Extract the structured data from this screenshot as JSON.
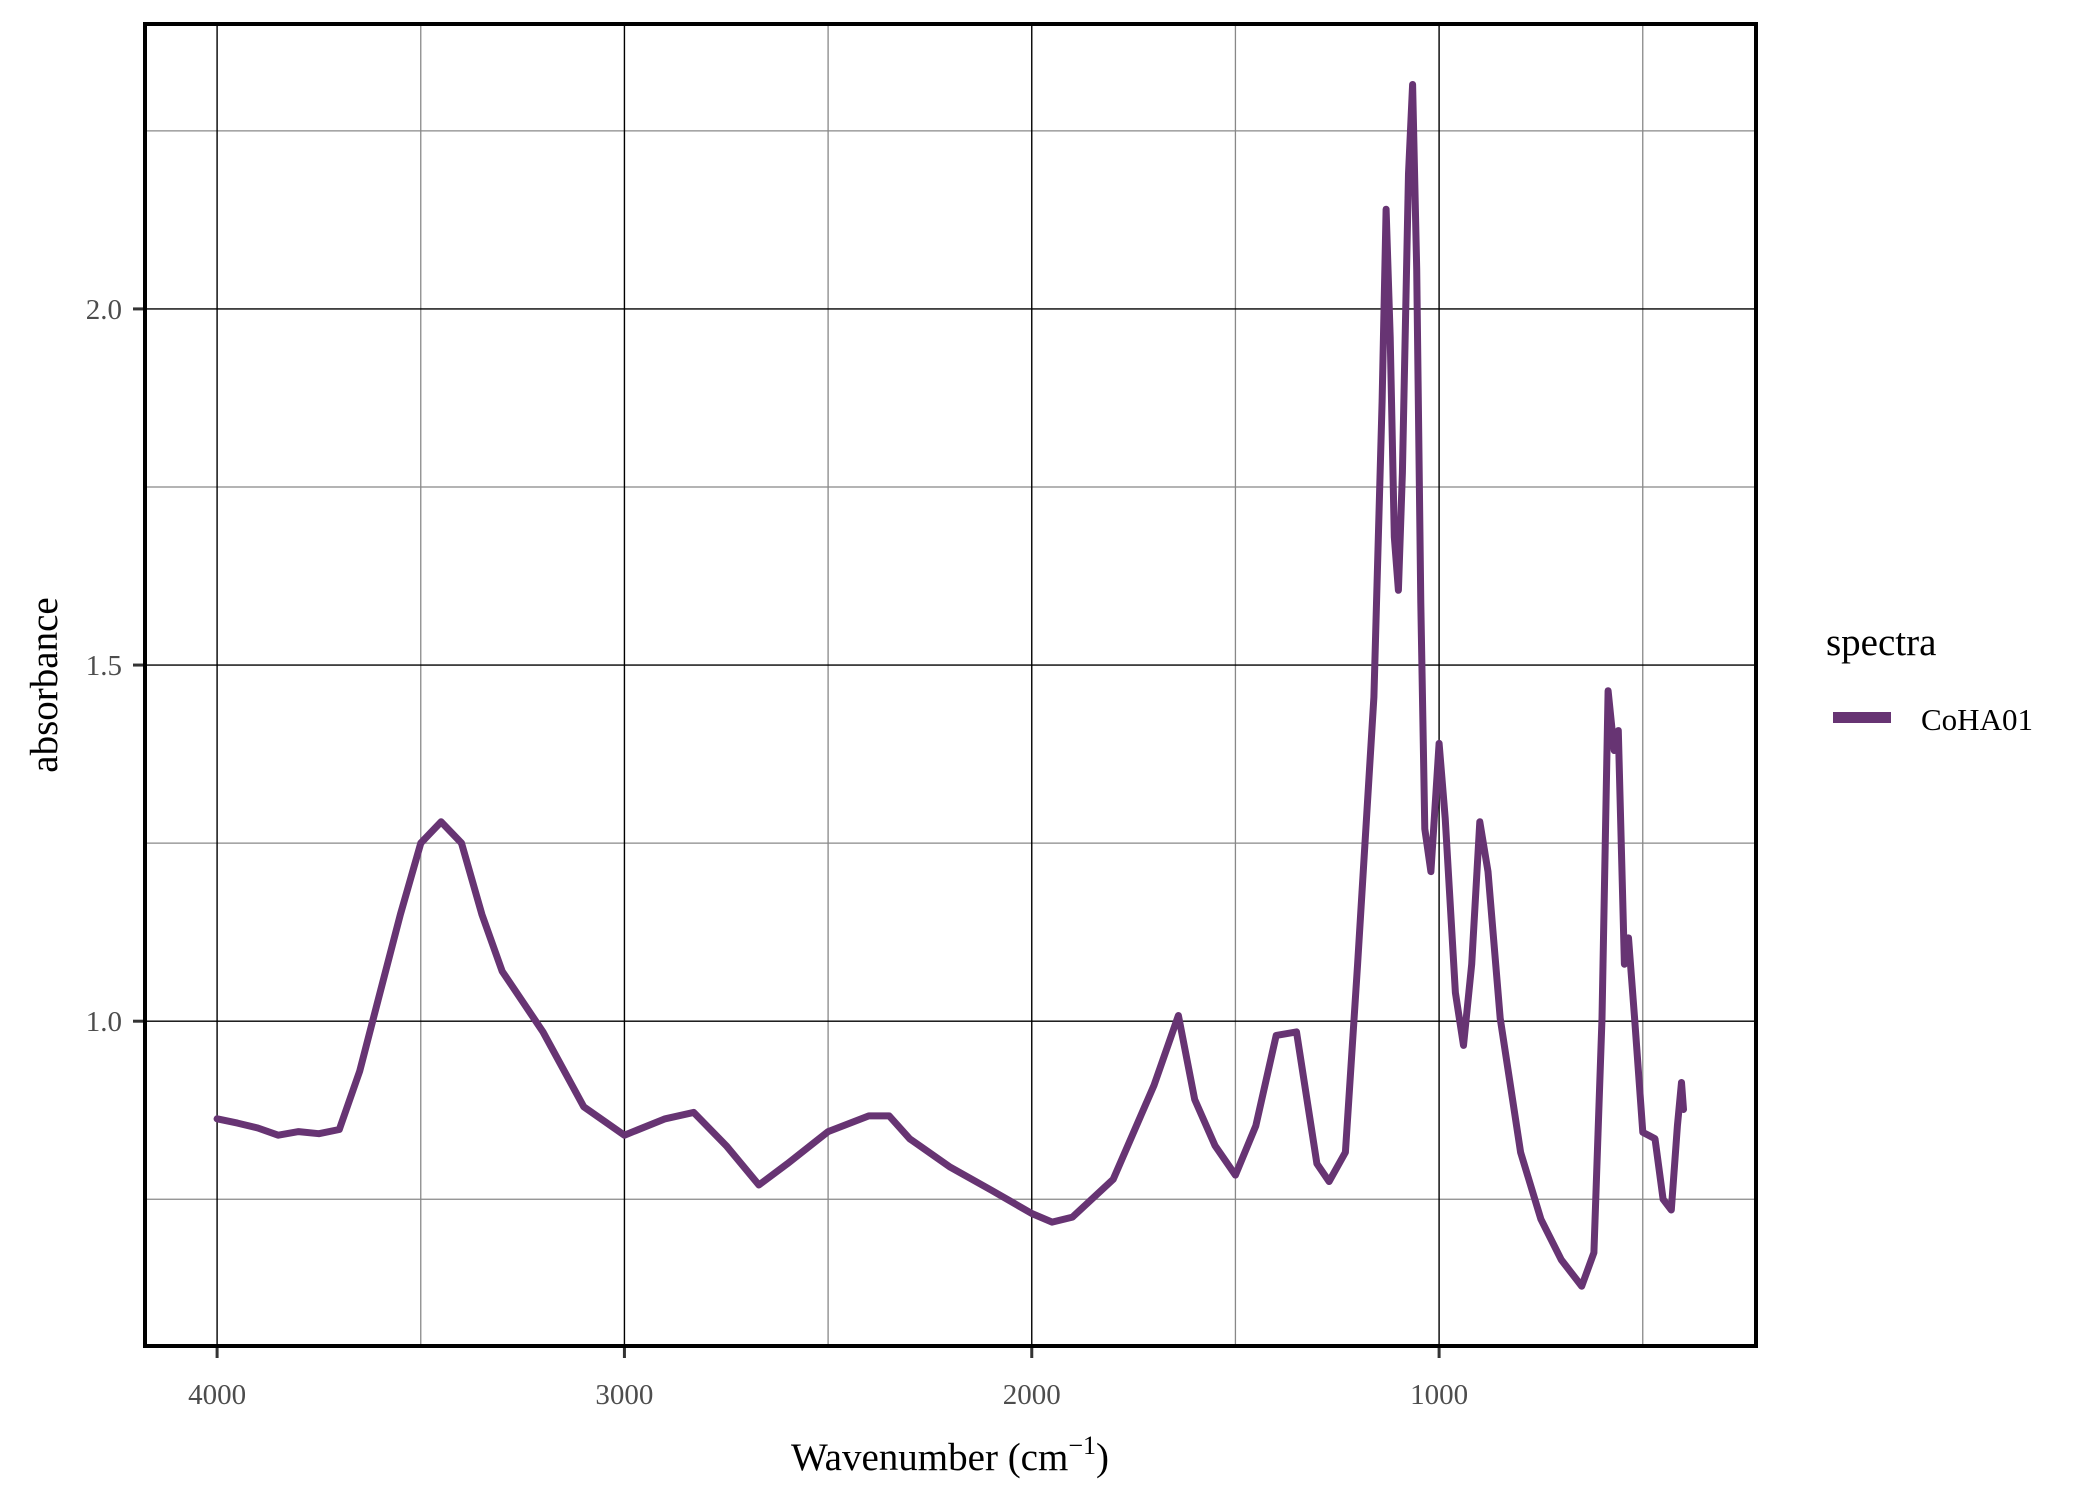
{
  "chart_data": {
    "type": "line",
    "title": "",
    "xlabel": "Wavenumber (cm",
    "xlabel_superscript": "−1",
    "xlabel_suffix": ")",
    "ylabel": "absorbance",
    "xlim": [
      4177,
      222
    ],
    "x_reversed": true,
    "ylim": [
      0.544,
      2.4
    ],
    "x_ticks": [
      4000,
      3000,
      2000,
      1000
    ],
    "x_tick_labels": [
      "4000",
      "3000",
      "2000",
      "1000"
    ],
    "x_minor_gridlines": [
      3500,
      2500,
      1500,
      500
    ],
    "y_ticks": [
      1.0,
      1.5,
      2.0
    ],
    "y_tick_labels": [
      "1.0",
      "1.5",
      "2.0"
    ],
    "y_minor_gridlines": [
      0.75,
      1.25,
      1.75,
      2.25
    ],
    "grid": true,
    "legend": {
      "title": "spectra",
      "position": "right"
    },
    "series": [
      {
        "name": "CoHA01",
        "color": "#673473",
        "x": [
          4000,
          3950,
          3900,
          3850,
          3800,
          3750,
          3700,
          3650,
          3600,
          3550,
          3500,
          3450,
          3400,
          3350,
          3300,
          3200,
          3100,
          3000,
          2900,
          2830,
          2750,
          2670,
          2600,
          2500,
          2400,
          2350,
          2300,
          2200,
          2100,
          2000,
          1950,
          1900,
          1800,
          1700,
          1640,
          1600,
          1550,
          1500,
          1450,
          1400,
          1350,
          1300,
          1270,
          1230,
          1200,
          1160,
          1140,
          1130,
          1120,
          1110,
          1100,
          1090,
          1075,
          1065,
          1055,
          1045,
          1035,
          1020,
          1000,
          985,
          960,
          940,
          920,
          900,
          880,
          850,
          800,
          750,
          700,
          650,
          620,
          600,
          585,
          570,
          560,
          545,
          535,
          520,
          500,
          470,
          450,
          430,
          415,
          405,
          400
        ],
        "y": [
          0.863,
          0.857,
          0.85,
          0.84,
          0.845,
          0.842,
          0.848,
          0.93,
          1.04,
          1.15,
          1.25,
          1.28,
          1.25,
          1.15,
          1.07,
          0.985,
          0.88,
          0.84,
          0.863,
          0.872,
          0.825,
          0.77,
          0.8,
          0.845,
          0.867,
          0.867,
          0.835,
          0.795,
          0.763,
          0.73,
          0.718,
          0.725,
          0.778,
          0.91,
          1.008,
          0.89,
          0.825,
          0.784,
          0.853,
          0.98,
          0.985,
          0.8,
          0.775,
          0.816,
          1.08,
          1.455,
          1.87,
          2.14,
          1.96,
          1.68,
          1.605,
          1.77,
          2.19,
          2.315,
          2.056,
          1.587,
          1.27,
          1.21,
          1.39,
          1.285,
          1.04,
          0.966,
          1.08,
          1.28,
          1.21,
          1.004,
          0.816,
          0.722,
          0.665,
          0.628,
          0.675,
          1.004,
          1.464,
          1.38,
          1.408,
          1.08,
          1.117,
          1.004,
          0.844,
          0.835,
          0.75,
          0.735,
          0.853,
          0.914,
          0.876
        ]
      }
    ]
  }
}
